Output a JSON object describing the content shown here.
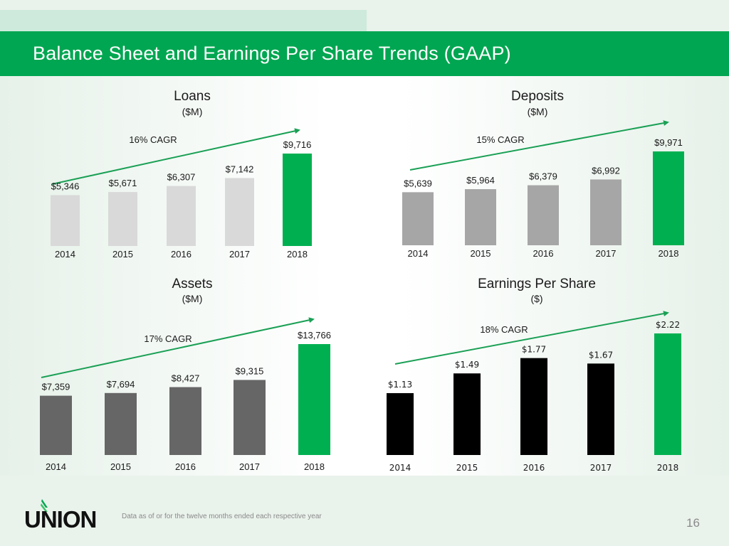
{
  "header": {
    "title": "Balance Sheet and Earnings Per Share Trends (GAAP)"
  },
  "footer": {
    "logo_text": "UNION",
    "note": "Data as of or for the twelve months ended each respective year",
    "page_number": "16"
  },
  "colors": {
    "brand_green": "#00a651",
    "loans_bar": "#d9d9d9",
    "deposits_bar": "#a6a6a6",
    "assets_bar": "#666666",
    "eps_bar": "#000000",
    "highlight_bar": "#00b050",
    "arrow": "#1aa055"
  },
  "chart_data": [
    {
      "id": "loans",
      "type": "bar",
      "title": "Loans",
      "subtitle": "($M)",
      "categories": [
        "2014",
        "2015",
        "2016",
        "2017",
        "2018"
      ],
      "values": [
        5346,
        5671,
        6307,
        7142,
        9716
      ],
      "data_labels": [
        "$5,346",
        "$5,671",
        "$6,307",
        "$7,142",
        "$9,716"
      ],
      "annotation": "16% CAGR",
      "highlight_last": true,
      "xlabel": "",
      "ylabel": "",
      "ylim": [
        0,
        9716
      ],
      "grid": false,
      "legend": "none"
    },
    {
      "id": "deposits",
      "type": "bar",
      "title": "Deposits",
      "subtitle": "($M)",
      "categories": [
        "2014",
        "2015",
        "2016",
        "2017",
        "2018"
      ],
      "values": [
        5639,
        5964,
        6379,
        6992,
        9971
      ],
      "data_labels": [
        "$5,639",
        "$5,964",
        "$6,379",
        "$6,992",
        "$9,971"
      ],
      "annotation": "15% CAGR",
      "highlight_last": true,
      "xlabel": "",
      "ylabel": "",
      "ylim": [
        0,
        9971
      ],
      "grid": false,
      "legend": "none"
    },
    {
      "id": "assets",
      "type": "bar",
      "title": "Assets",
      "subtitle": "($M)",
      "categories": [
        "2014",
        "2015",
        "2016",
        "2017",
        "2018"
      ],
      "values": [
        7359,
        7694,
        8427,
        9315,
        13766
      ],
      "data_labels": [
        "$7,359",
        "$7,694",
        "$8,427",
        "$9,315",
        "$13,766"
      ],
      "annotation": "17% CAGR",
      "highlight_last": true,
      "xlabel": "",
      "ylabel": "",
      "ylim": [
        0,
        13766
      ],
      "grid": false,
      "legend": "none"
    },
    {
      "id": "eps",
      "type": "bar",
      "title": "Earnings Per Share",
      "subtitle": "($)",
      "categories": [
        "2014",
        "2015",
        "2016",
        "2017",
        "2018"
      ],
      "values": [
        1.13,
        1.49,
        1.77,
        1.67,
        2.22
      ],
      "data_labels": [
        "$1.13",
        "$1.49",
        "$1.77",
        "$1.67",
        "$2.22"
      ],
      "annotation": "18% CAGR",
      "highlight_last": true,
      "xlabel": "",
      "ylabel": "",
      "ylim": [
        0,
        2.22
      ],
      "grid": false,
      "legend": "none"
    }
  ]
}
